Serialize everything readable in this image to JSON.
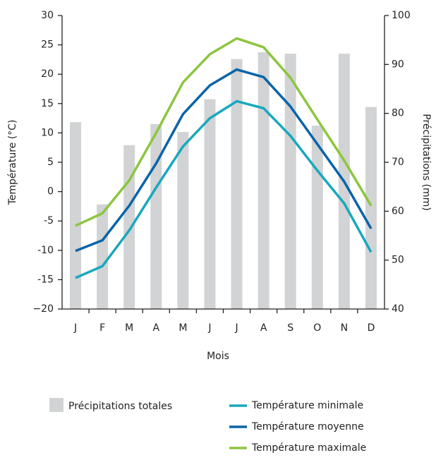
{
  "chart_data": {
    "type": "bar-line",
    "x_label": "Mois",
    "y_label": "Température (°C)",
    "y2_label": "Précipitations (mm)",
    "categories": [
      "J",
      "F",
      "M",
      "A",
      "M",
      "J",
      "J",
      "A",
      "S",
      "O",
      "N",
      "D"
    ],
    "ylim": [
      -20,
      30
    ],
    "yticks": [
      {
        "value": -20,
        "label": "−20"
      },
      -15,
      -10,
      -5,
      0,
      5,
      10,
      15,
      20,
      25,
      30
    ],
    "y2lim": [
      40,
      100
    ],
    "y2ticks": [
      40,
      50,
      60,
      70,
      80,
      90,
      100
    ],
    "series": [
      {
        "name": "Précipitations totales",
        "type": "bar",
        "axis": "y2",
        "color": "#d1d3d4",
        "values": [
          78.2,
          61.4,
          73.5,
          77.8,
          76.2,
          82.9,
          91.1,
          92.5,
          92.2,
          77.5,
          92.2,
          81.3
        ]
      },
      {
        "name": "Température minimale",
        "type": "line",
        "color": "#19a7bf",
        "values": [
          -14.7,
          -12.7,
          -6.6,
          0.7,
          7.7,
          12.5,
          15.4,
          14.2,
          9.5,
          3.6,
          -2.0,
          -10.3
        ]
      },
      {
        "name": "Température moyenne",
        "type": "line",
        "color": "#0a64a8",
        "values": [
          -10.1,
          -8.3,
          -2.4,
          4.8,
          13.2,
          18.1,
          20.8,
          19.5,
          14.5,
          8.1,
          1.7,
          -6.3
        ]
      },
      {
        "name": "Température maximale",
        "type": "line",
        "color": "#8cc63f",
        "values": [
          -5.8,
          -3.7,
          1.9,
          10.0,
          18.6,
          23.4,
          26.1,
          24.6,
          19.4,
          12.3,
          5.3,
          -2.4
        ]
      }
    ]
  }
}
